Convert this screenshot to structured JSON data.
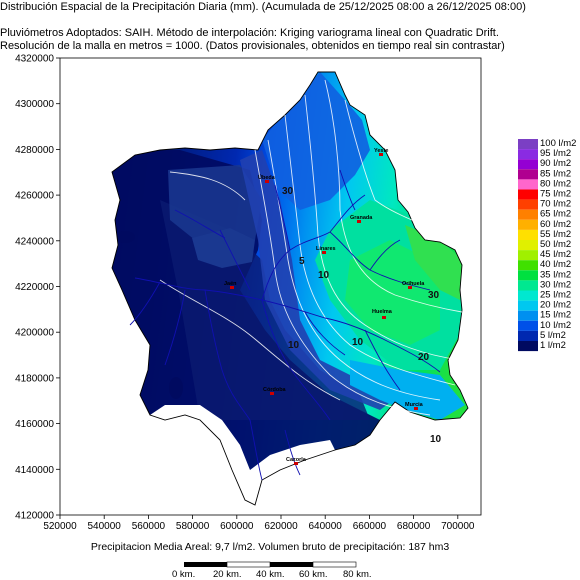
{
  "header": {
    "line1": "Distribución Espacial de la Precipitación Diaria (mm). (Acumulada de 25/12/2025 08:00 a 26/12/2025 08:00)",
    "line2": "Pluviómetros Adoptados: SAIH.  Método de interpolación: Kriging variograma lineal con Quadratic Drift.",
    "line3": "Resolución de la malla en metros = 1000. (Datos provisionales, obtenidos en tiempo real sin contrastar)"
  },
  "axes": {
    "y_ticks": [
      "4320000",
      "4300000",
      "4280000",
      "4260000",
      "4240000",
      "4220000",
      "4200000",
      "4180000",
      "4160000",
      "4140000",
      "4120000"
    ],
    "x_ticks": [
      "520000",
      "540000",
      "560000",
      "580000",
      "600000",
      "620000",
      "640000",
      "660000",
      "680000",
      "700000"
    ]
  },
  "legend": {
    "items": [
      {
        "label": "100 l/m2",
        "color": "#7b3fc4"
      },
      {
        "label": "95 l/m2",
        "color": "#8a2be2"
      },
      {
        "label": "90 l/m2",
        "color": "#9400d3"
      },
      {
        "label": "85 l/m2",
        "color": "#b00090"
      },
      {
        "label": "80 l/m2",
        "color": "#ff66cc"
      },
      {
        "label": "75 l/m2",
        "color": "#ff0000"
      },
      {
        "label": "70 l/m2",
        "color": "#ff4000"
      },
      {
        "label": "65 l/m2",
        "color": "#ff8000"
      },
      {
        "label": "60 l/m2",
        "color": "#ffb000"
      },
      {
        "label": "55 l/m2",
        "color": "#ffe000"
      },
      {
        "label": "50 l/m2",
        "color": "#e0f000"
      },
      {
        "label": "45 l/m2",
        "color": "#a0f000"
      },
      {
        "label": "40 l/m2",
        "color": "#40e000"
      },
      {
        "label": "35 l/m2",
        "color": "#00e040"
      },
      {
        "label": "30 l/m2",
        "color": "#00e890"
      },
      {
        "label": "25 l/m2",
        "color": "#00e8d0"
      },
      {
        "label": "20 l/m2",
        "color": "#00c8f0"
      },
      {
        "label": "15 l/m2",
        "color": "#0090f0"
      },
      {
        "label": "10 l/m2",
        "color": "#0050e8"
      },
      {
        "label": "5 l/m2",
        "color": "#0028b0"
      },
      {
        "label": "1 l/m2",
        "color": "#000a60"
      }
    ]
  },
  "towns": [
    "Yeste",
    "Úbeda",
    "Linares",
    "Jaén",
    "Huelma",
    "Orihuela",
    "Murcia",
    "Córdoba",
    "Cazorla",
    "Granada"
  ],
  "contour_labels": [
    "30",
    "10",
    "5",
    "10",
    "20",
    "30",
    "10",
    "10"
  ],
  "footer": {
    "summary": "Precipitacion Media Areal: 9,7 l/m2. Volumen bruto de precipitación: 187 hm3"
  },
  "scale_bar": {
    "labels": [
      "0 km.",
      "20 km.",
      "40 km.",
      "60 km.",
      "80 km."
    ]
  }
}
